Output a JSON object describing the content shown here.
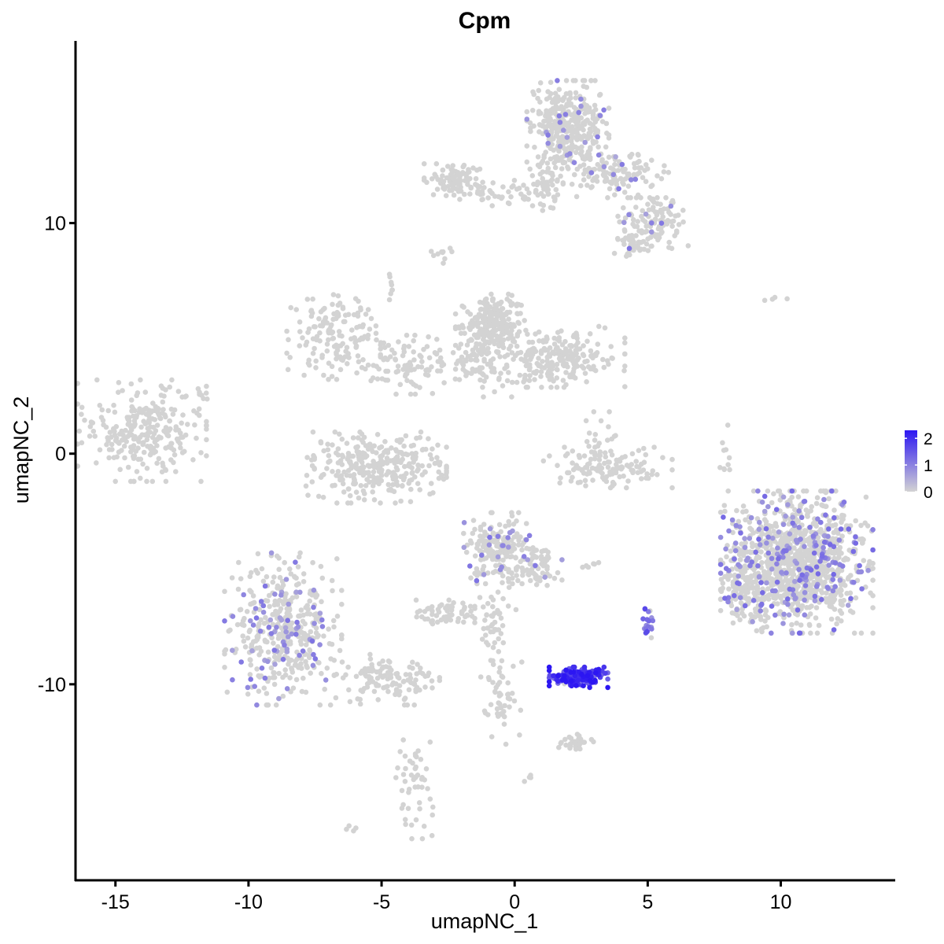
{
  "chart_data": {
    "type": "scatter",
    "title": "Cpm",
    "xlabel": "umapNC_1",
    "ylabel": "umapNC_2",
    "xlim": [
      -16.5,
      14.3
    ],
    "ylim": [
      -18.5,
      17.9
    ],
    "xticks": [
      -15,
      -10,
      -5,
      0,
      5,
      10
    ],
    "yticks": [
      10,
      0,
      -10
    ],
    "x_tick_labels": [
      "-15",
      "-10",
      "-5",
      "0",
      "5",
      "10"
    ],
    "y_tick_labels": [
      "10",
      "0",
      "-10"
    ],
    "grid": false,
    "legend": {
      "placement": "right",
      "type": "colorbar",
      "range": [
        0,
        2.3
      ],
      "ticks": [
        2,
        1,
        0
      ],
      "tick_labels": [
        "2",
        "1",
        "0"
      ],
      "low_color": "#d3d3d3",
      "high_color": "#2c16f2"
    },
    "point_color_zero": "#d3d3d3",
    "clusters": [
      {
        "cx": -14.0,
        "cy": 1.0,
        "sx": 1.1,
        "sy": 1.0,
        "n": 260,
        "expr_frac": 0.0,
        "expr_level": 0.6
      },
      {
        "cx": -8.7,
        "cy": -7.6,
        "sx": 1.0,
        "sy": 1.5,
        "n": 420,
        "expr_frac": 0.18,
        "expr_level": 0.9
      },
      {
        "cx": -4.8,
        "cy": -9.8,
        "sx": 0.9,
        "sy": 0.5,
        "n": 120,
        "expr_frac": 0.0,
        "expr_level": 0.6
      },
      {
        "cx": -3.7,
        "cy": -14.5,
        "sx": 0.35,
        "sy": 1.0,
        "n": 50,
        "expr_frac": 0.0,
        "expr_level": 0.6
      },
      {
        "cx": -6.8,
        "cy": 5.2,
        "sx": 0.8,
        "sy": 0.9,
        "n": 140,
        "expr_frac": 0.0,
        "expr_level": 0.6
      },
      {
        "cx": -4.0,
        "cy": 3.9,
        "sx": 1.3,
        "sy": 0.6,
        "n": 120,
        "expr_frac": 0.0,
        "expr_level": 0.6
      },
      {
        "cx": -0.9,
        "cy": 5.6,
        "sx": 0.6,
        "sy": 0.6,
        "n": 220,
        "expr_frac": 0.0,
        "expr_level": 0.6
      },
      {
        "cx": 1.5,
        "cy": 4.2,
        "sx": 1.2,
        "sy": 0.6,
        "n": 240,
        "expr_frac": 0.0,
        "expr_level": 0.6
      },
      {
        "cx": -1.2,
        "cy": 4.0,
        "sx": 0.6,
        "sy": 0.7,
        "n": 60,
        "expr_frac": 0.0,
        "expr_level": 0.6
      },
      {
        "cx": -5.2,
        "cy": -0.6,
        "sx": 1.2,
        "sy": 0.7,
        "n": 300,
        "expr_frac": 0.0,
        "expr_level": 0.6
      },
      {
        "cx": 3.5,
        "cy": -0.6,
        "sx": 1.1,
        "sy": 0.4,
        "n": 120,
        "expr_frac": 0.0,
        "expr_level": 0.6
      },
      {
        "cx": 3.2,
        "cy": 0.5,
        "sx": 0.4,
        "sy": 0.6,
        "n": 25,
        "expr_frac": 0.0,
        "expr_level": 0.6
      },
      {
        "cx": -0.6,
        "cy": -4.1,
        "sx": 0.6,
        "sy": 0.7,
        "n": 200,
        "expr_frac": 0.1,
        "expr_level": 0.9
      },
      {
        "cx": 0.9,
        "cy": -4.8,
        "sx": 0.4,
        "sy": 0.5,
        "n": 60,
        "expr_frac": 0.05,
        "expr_level": 0.9
      },
      {
        "cx": -0.7,
        "cy": -7.0,
        "sx": 0.35,
        "sy": 0.9,
        "n": 50,
        "expr_frac": 0.0,
        "expr_level": 0.6
      },
      {
        "cx": -2.6,
        "cy": -6.9,
        "sx": 0.5,
        "sy": 0.25,
        "n": 60,
        "expr_frac": 0.0,
        "expr_level": 0.6
      },
      {
        "cx": -0.5,
        "cy": -10.4,
        "sx": 0.35,
        "sy": 1.0,
        "n": 50,
        "expr_frac": 0.0,
        "expr_level": 0.6
      },
      {
        "cx": 2.4,
        "cy": -9.7,
        "sx": 0.5,
        "sy": 0.2,
        "n": 160,
        "expr_frac": 0.96,
        "expr_level": 1.9
      },
      {
        "cx": 2.3,
        "cy": -12.5,
        "sx": 0.3,
        "sy": 0.15,
        "n": 30,
        "expr_frac": 0.0,
        "expr_level": 0.6
      },
      {
        "cx": 2.8,
        "cy": -4.9,
        "sx": 0.25,
        "sy": 0.1,
        "n": 6,
        "expr_frac": 0.0,
        "expr_level": 0.6
      },
      {
        "cx": 5.0,
        "cy": -7.4,
        "sx": 0.1,
        "sy": 0.35,
        "n": 18,
        "expr_frac": 0.9,
        "expr_level": 1.3
      },
      {
        "cx": 10.6,
        "cy": -4.7,
        "sx": 1.3,
        "sy": 1.4,
        "n": 1100,
        "expr_frac": 0.16,
        "expr_level": 1.0
      },
      {
        "cx": 8.7,
        "cy": -5.8,
        "sx": 0.4,
        "sy": 0.7,
        "n": 120,
        "expr_frac": 0.08,
        "expr_level": 1.0
      },
      {
        "cx": 2.0,
        "cy": 14.2,
        "sx": 0.7,
        "sy": 0.9,
        "n": 340,
        "expr_frac": 0.06,
        "expr_level": 0.9
      },
      {
        "cx": 3.8,
        "cy": 12.2,
        "sx": 0.9,
        "sy": 0.5,
        "n": 130,
        "expr_frac": 0.08,
        "expr_level": 0.9
      },
      {
        "cx": 5.2,
        "cy": 10.0,
        "sx": 0.6,
        "sy": 0.5,
        "n": 110,
        "expr_frac": 0.03,
        "expr_level": 0.9
      },
      {
        "cx": 4.5,
        "cy": 9.0,
        "sx": 0.4,
        "sy": 0.3,
        "n": 30,
        "expr_frac": 0.0,
        "expr_level": 0.6
      },
      {
        "cx": -2.3,
        "cy": 11.8,
        "sx": 0.5,
        "sy": 0.35,
        "n": 90,
        "expr_frac": 0.0,
        "expr_level": 0.6
      },
      {
        "cx": -0.5,
        "cy": 11.3,
        "sx": 0.8,
        "sy": 0.25,
        "n": 40,
        "expr_frac": 0.0,
        "expr_level": 0.6
      },
      {
        "cx": 1.2,
        "cy": 11.5,
        "sx": 0.3,
        "sy": 0.5,
        "n": 50,
        "expr_frac": 0.0,
        "expr_level": 0.6
      },
      {
        "cx": 9.8,
        "cy": 6.7,
        "sx": 0.2,
        "sy": 0.05,
        "n": 4,
        "expr_frac": 0.0,
        "expr_level": 0.6
      },
      {
        "cx": 7.9,
        "cy": -0.3,
        "sx": 0.1,
        "sy": 0.7,
        "n": 10,
        "expr_frac": 0.0,
        "expr_level": 0.6
      },
      {
        "cx": -6.1,
        "cy": -16.2,
        "sx": 0.1,
        "sy": 0.1,
        "n": 4,
        "expr_frac": 0.0,
        "expr_level": 0.6
      },
      {
        "cx": -2.8,
        "cy": 8.7,
        "sx": 0.2,
        "sy": 0.2,
        "n": 10,
        "expr_frac": 0.0,
        "expr_level": 0.6
      },
      {
        "cx": -4.6,
        "cy": 7.2,
        "sx": 0.1,
        "sy": 0.3,
        "n": 8,
        "expr_frac": 0.0,
        "expr_level": 0.6
      },
      {
        "cx": -11.6,
        "cy": 2.5,
        "sx": 0.2,
        "sy": 0.2,
        "n": 6,
        "expr_frac": 0.0,
        "expr_level": 0.6
      },
      {
        "cx": 0.6,
        "cy": -14.0,
        "sx": 0.2,
        "sy": 0.1,
        "n": 4,
        "expr_frac": 0.0,
        "expr_level": 0.6
      }
    ]
  }
}
